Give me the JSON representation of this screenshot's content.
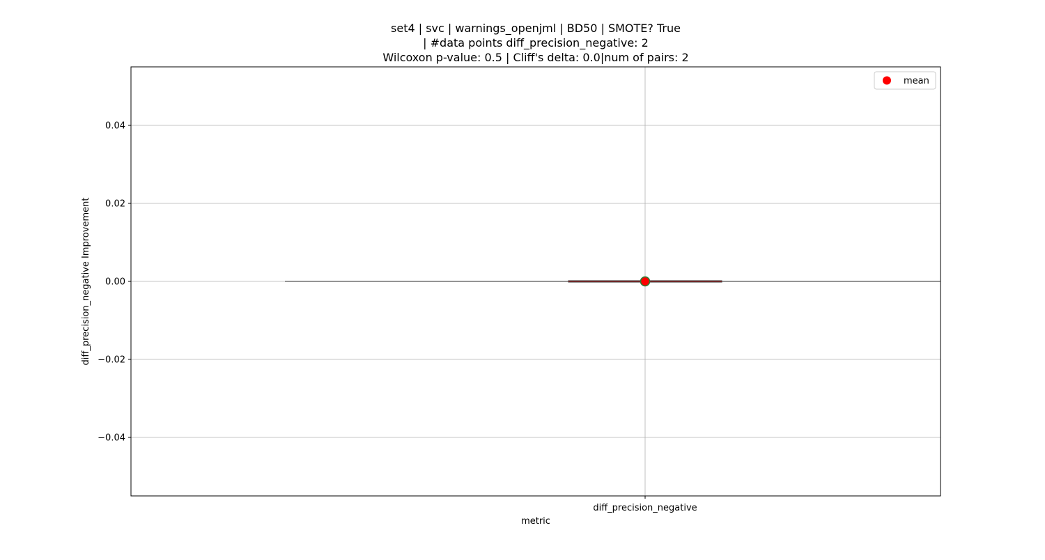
{
  "chart_data": {
    "type": "box",
    "title": [
      "set4 | svc | warnings_openjml | BD50 | SMOTE? True",
      "| #data points diff_precision_negative: 2",
      "Wilcoxon p-value: 0.5 | Cliff's delta: 0.0|num of pairs: 2"
    ],
    "xlabel": "metric",
    "ylabel": "diff_precision_negative Improvement",
    "categories": [
      "diff_precision_negative"
    ],
    "ylim": [
      -0.055,
      0.055
    ],
    "yticks": [
      -0.04,
      -0.02,
      0.0,
      0.02,
      0.04
    ],
    "ytick_labels": [
      "−0.04",
      "−0.02",
      "0.00",
      "0.02",
      "0.04"
    ],
    "boxes": [
      {
        "category": "diff_precision_negative",
        "q1": 0.0,
        "median": 0.0,
        "q3": 0.0,
        "whisker_low": 0.0,
        "whisker_high": 0.0,
        "mean": 0.0
      }
    ],
    "grid": true,
    "legend": {
      "position": "top-right",
      "entries": [
        {
          "label": "mean",
          "color": "#ff0000"
        }
      ]
    },
    "colors": {
      "mean_fill": "#ff0000",
      "mean_edge": "#2e7d32",
      "box": "#555555",
      "median": "#8b0000",
      "grid": "#b0b0b0"
    }
  }
}
